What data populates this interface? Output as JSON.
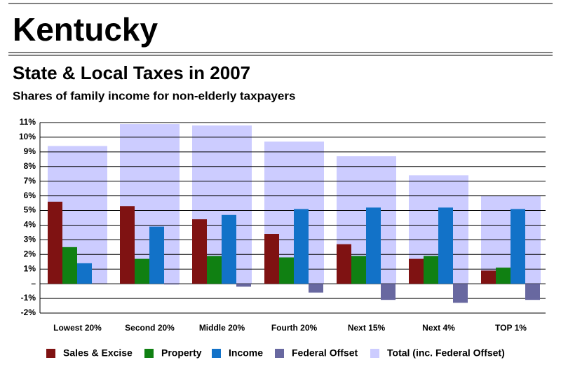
{
  "page_title": "Kentucky",
  "chart_data": {
    "type": "bar",
    "title": "State & Local Taxes in 2007",
    "subtitle": "Shares of family income for non-elderly taxpayers",
    "categories": [
      "Lowest 20%",
      "Second 20%",
      "Middle 20%",
      "Fourth 20%",
      "Next 15%",
      "Next 4%",
      "TOP 1%"
    ],
    "series": [
      {
        "name": "Sales & Excise",
        "color": "#7f1212",
        "values": [
          5.6,
          5.3,
          4.4,
          3.4,
          2.7,
          1.7,
          0.9
        ]
      },
      {
        "name": "Property",
        "color": "#108012",
        "values": [
          2.5,
          1.7,
          1.9,
          1.8,
          1.9,
          1.9,
          1.1
        ]
      },
      {
        "name": "Income",
        "color": "#1272c8",
        "values": [
          1.4,
          3.9,
          4.7,
          5.1,
          5.2,
          5.2,
          5.1
        ]
      },
      {
        "name": "Federal Offset",
        "color": "#6868a0",
        "values": [
          0,
          -0.05,
          -0.2,
          -0.6,
          -1.1,
          -1.3,
          -1.1
        ]
      },
      {
        "name": "Total (inc. Federal Offset)",
        "color": "#ccccff",
        "values": [
          9.4,
          10.9,
          10.8,
          9.7,
          8.7,
          7.4,
          6.0
        ]
      }
    ],
    "ylim": [
      -2,
      11
    ],
    "yticks": [
      {
        "value": -2,
        "label": "-2%"
      },
      {
        "value": -1,
        "label": "-1%"
      },
      {
        "value": 0,
        "label": "–"
      },
      {
        "value": 1,
        "label": "1%"
      },
      {
        "value": 2,
        "label": "2%"
      },
      {
        "value": 3,
        "label": "3%"
      },
      {
        "value": 4,
        "label": "4%"
      },
      {
        "value": 5,
        "label": "5%"
      },
      {
        "value": 6,
        "label": "6%"
      },
      {
        "value": 7,
        "label": "7%"
      },
      {
        "value": 8,
        "label": "8%"
      },
      {
        "value": 9,
        "label": "9%"
      },
      {
        "value": 10,
        "label": "10%"
      },
      {
        "value": 11,
        "label": "11%"
      }
    ],
    "grid": true,
    "legend": "bottom"
  }
}
